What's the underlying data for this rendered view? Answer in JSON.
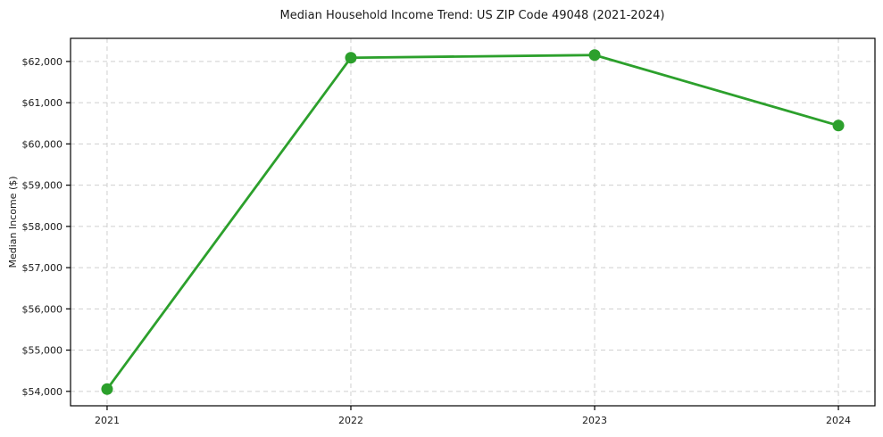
{
  "chart_data": {
    "type": "line",
    "title": "Median Household Income Trend: US ZIP Code 49048 (2021-2024)",
    "xlabel": "",
    "ylabel": "Median Income ($)",
    "categories": [
      2021,
      2022,
      2023,
      2024
    ],
    "series": [
      {
        "name": "Median Household Income",
        "values": [
          54055,
          62090,
          62155,
          60445
        ]
      }
    ],
    "x": [
      2021,
      2022,
      2023,
      2024
    ],
    "xlim": [
      2020.85,
      2024.15
    ],
    "ylim": [
      53650,
      62560
    ],
    "yticks": [
      54000,
      55000,
      56000,
      57000,
      58000,
      59000,
      60000,
      61000,
      62000
    ],
    "ytick_labels": [
      "$54,000",
      "$55,000",
      "$56,000",
      "$57,000",
      "$58,000",
      "$59,000",
      "$60,000",
      "$61,000",
      "$62,000"
    ],
    "xtick_labels": [
      "2021",
      "2022",
      "2023",
      "2024"
    ],
    "grid": true,
    "grid_style": "dashed",
    "legend": "none",
    "colors": {
      "line": "#2ca02c",
      "marker": "#2ca02c",
      "grid": "#cfcfcf",
      "spine": "#000000",
      "text": "#1a1a1a",
      "background": "#ffffff"
    }
  }
}
